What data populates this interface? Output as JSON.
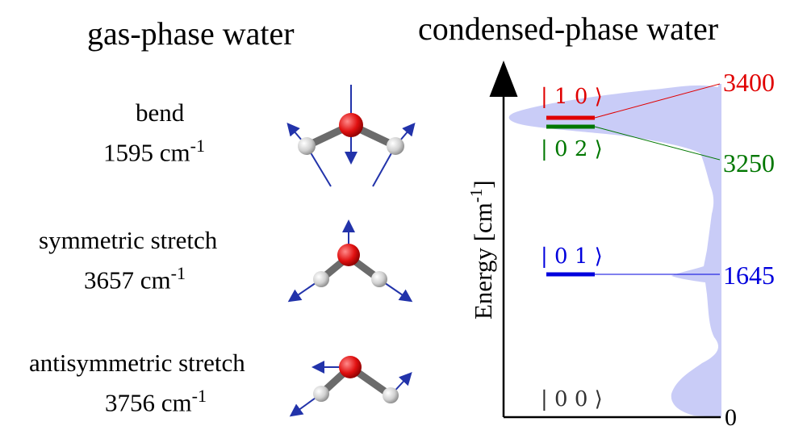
{
  "headings": {
    "left": "gas-phase water",
    "right": "condensed-phase water"
  },
  "modes": [
    {
      "name": "bend",
      "freq": "1595 cm",
      "unit_exp": "-1"
    },
    {
      "name": "symmetric stretch",
      "freq": "3657 cm",
      "unit_exp": "-1"
    },
    {
      "name": "antisymmetric stretch",
      "freq": "3756 cm",
      "unit_exp": "-1"
    }
  ],
  "axis": {
    "label": "Energy [cm",
    "label_exp": "-1",
    "label_close": "]",
    "zero": "0"
  },
  "levels": [
    {
      "ket": "| 1 0 ⟩",
      "value": "3400",
      "color": "#e00000"
    },
    {
      "ket": "| 0 2 ⟩",
      "value": "3250",
      "color": "#007700"
    },
    {
      "ket": "| 0 1 ⟩",
      "value": "1645",
      "color": "#0000dd"
    },
    {
      "ket": "| 0 0 ⟩",
      "value": "",
      "color": "#333333"
    }
  ],
  "colors": {
    "spectrum_fill": "#c9ccf7",
    "oxygen": "#e01010",
    "hydrogen": "#d8d8d8",
    "bond": "#6b6b6b",
    "arrow": "#2233aa"
  }
}
